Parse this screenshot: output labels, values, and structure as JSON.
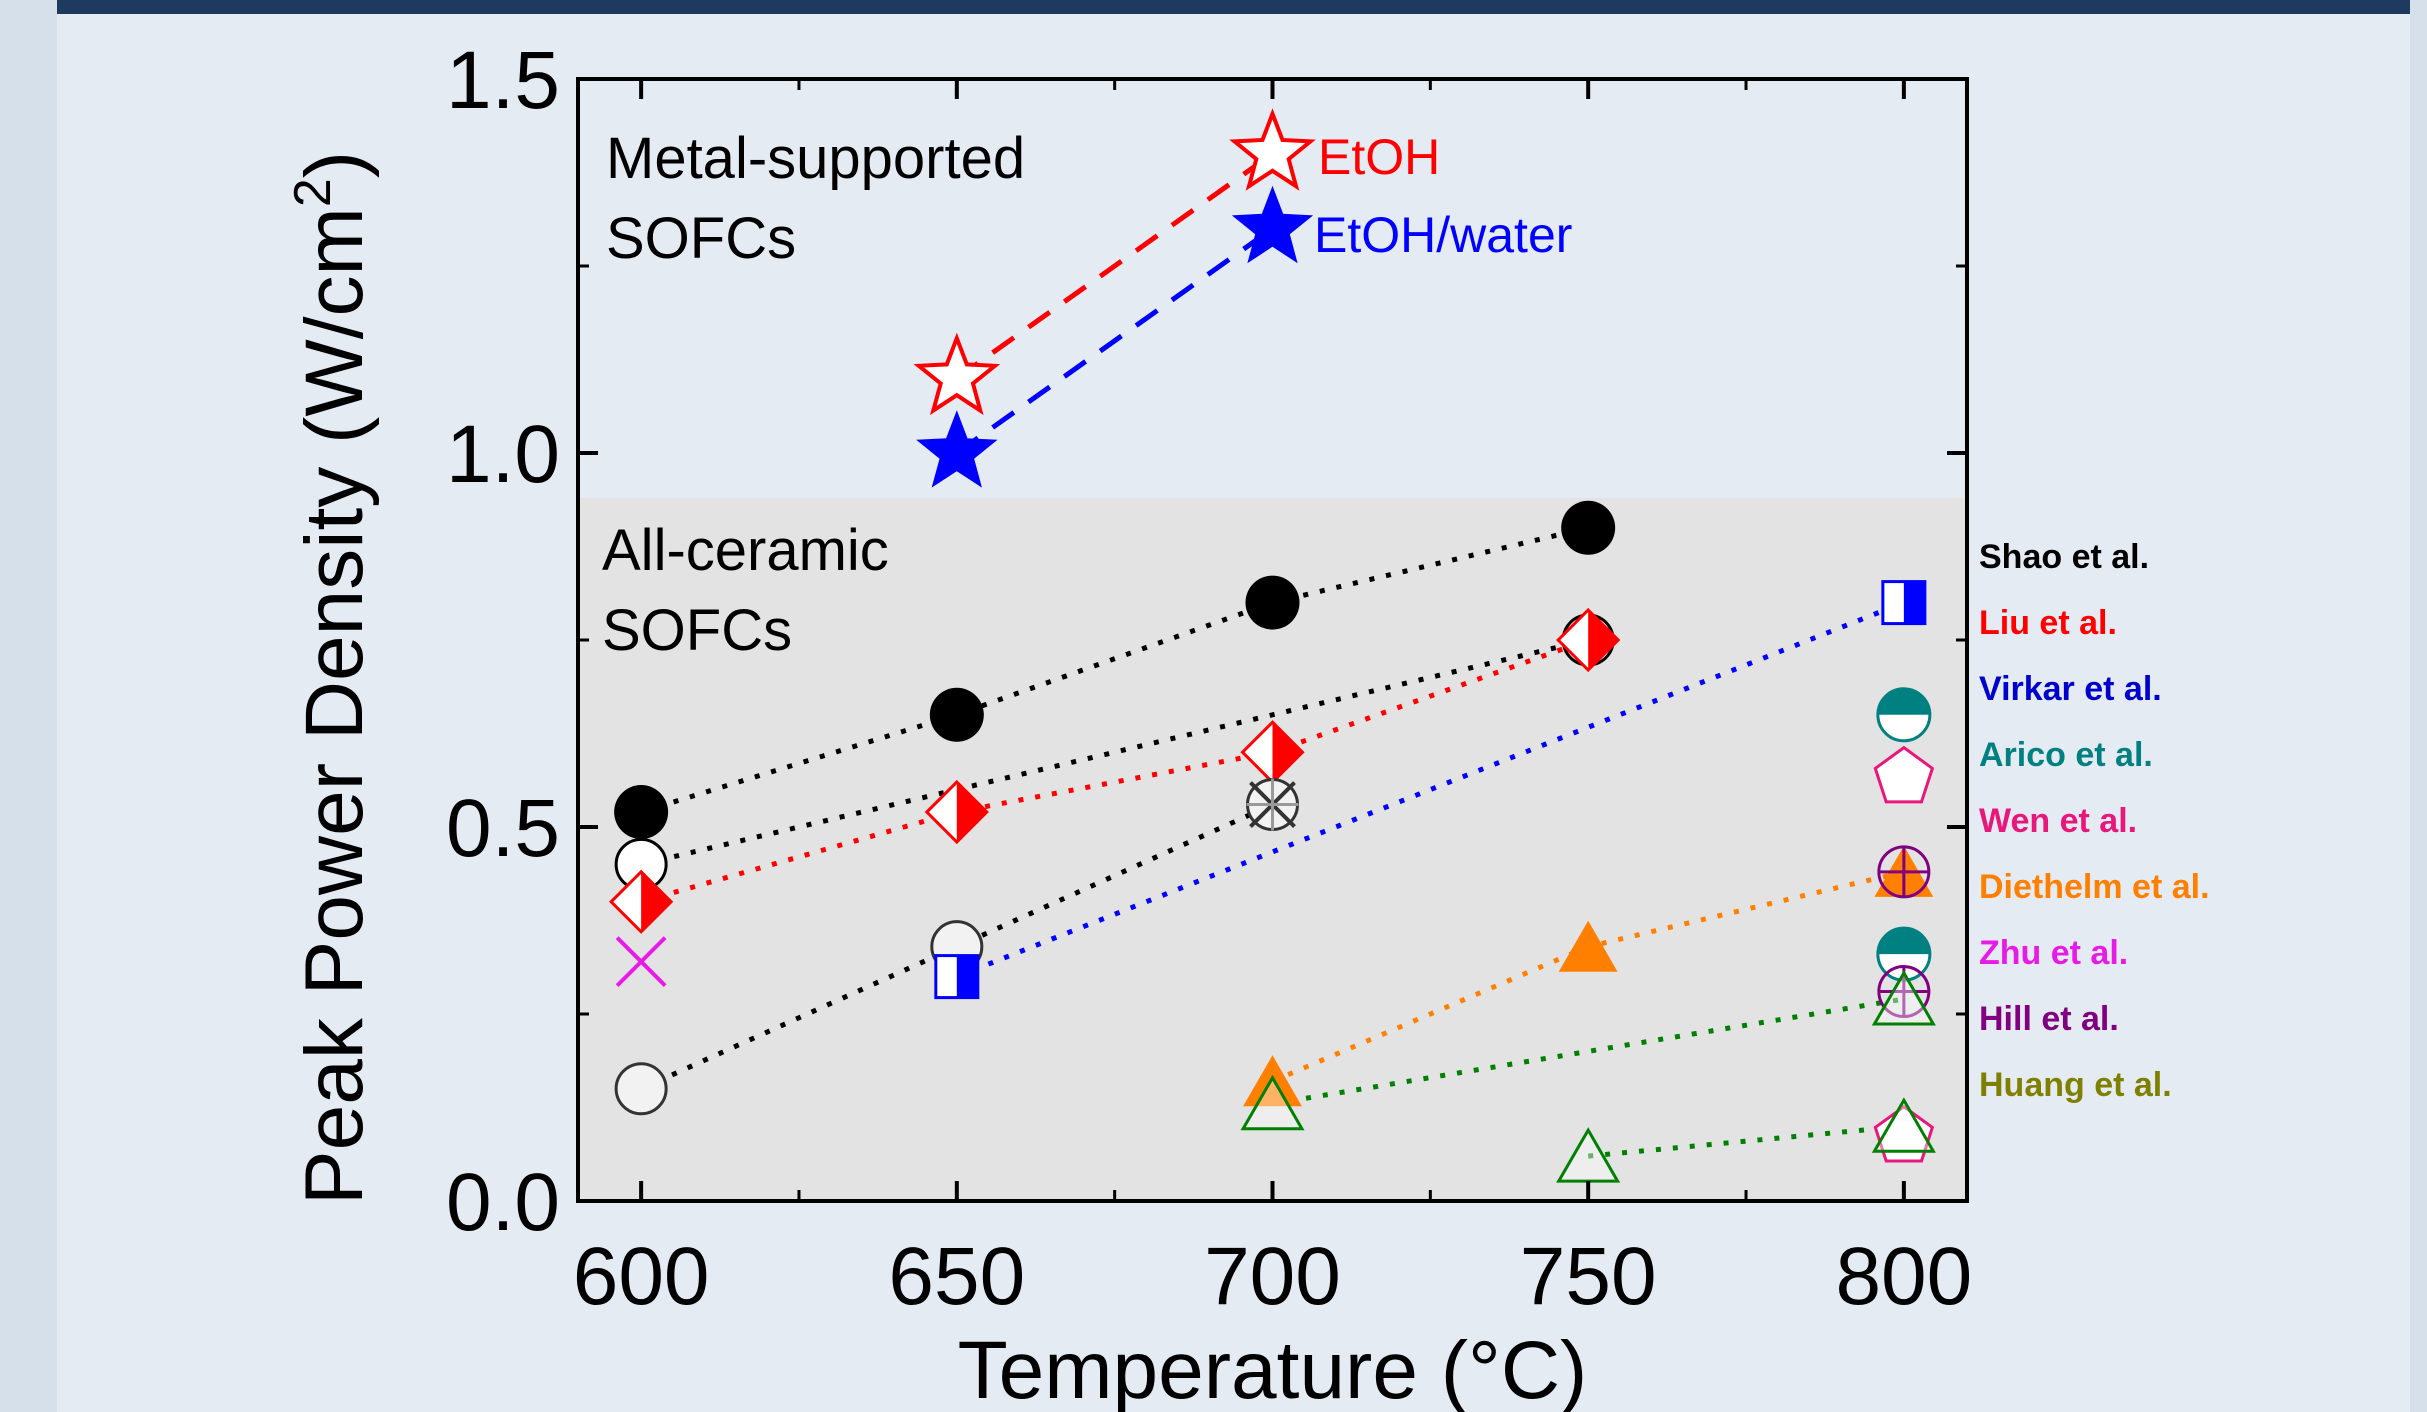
{
  "chart_data": {
    "type": "scatter",
    "title": "",
    "xlabel": "Temperature (°C)",
    "ylabel_parts": [
      "Peak Power Density (W/cm",
      "2",
      ")"
    ],
    "xlim": [
      590,
      810
    ],
    "ylim": [
      0.0,
      1.5
    ],
    "x_ticks": [
      600,
      650,
      700,
      750,
      800
    ],
    "x_tick_labels": [
      "600",
      "650",
      "700",
      "750",
      "800"
    ],
    "y_ticks": [
      0.0,
      0.5,
      1.0,
      1.5
    ],
    "y_tick_labels": [
      "0.0",
      "0.5",
      "1.0",
      "1.5"
    ],
    "grid": false,
    "annotations": {
      "metal_supported": [
        "Metal-supported",
        "SOFCs"
      ],
      "all_ceramic": [
        "All-ceramic",
        "SOFCs"
      ],
      "etoh": "EtOH",
      "etoh_water": "EtOH/water"
    },
    "ceramic_region_max": 0.94,
    "legend_position": "right",
    "legend": [
      {
        "name": "Shao et al.",
        "color": "#000000"
      },
      {
        "name": "Liu et al.",
        "color": "#ff0000"
      },
      {
        "name": "Virkar et al.",
        "color": "#0000cc"
      },
      {
        "name": "Arico et al.",
        "color": "#008080"
      },
      {
        "name": "Wen et al.",
        "color": "#e8177b"
      },
      {
        "name": "Diethelm et al.",
        "color": "#ff7f00"
      },
      {
        "name": "Zhu et al.",
        "color": "#e61ce6"
      },
      {
        "name": "Hill et al.",
        "color": "#800080"
      },
      {
        "name": "Huang et al.",
        "color": "#808000"
      }
    ],
    "series": [
      {
        "name": "EtOH",
        "marker": "star-open",
        "color": "#ff0000",
        "line": "dashed",
        "x": [
          650,
          700
        ],
        "y": [
          1.1,
          1.4
        ]
      },
      {
        "name": "EtOH/water",
        "marker": "star-filled",
        "color": "#0000ff",
        "line": "dashed",
        "x": [
          650,
          700
        ],
        "y": [
          1.0,
          1.3
        ]
      },
      {
        "marker": "circle-filled",
        "color": "#000000",
        "line": "dotted",
        "x": [
          600,
          650,
          700,
          750
        ],
        "y": [
          0.52,
          0.65,
          0.8,
          0.9
        ]
      },
      {
        "marker": "circle-open",
        "color": "#000000",
        "line": "dotted",
        "x": [
          600,
          750
        ],
        "y": [
          0.45,
          0.75
        ]
      },
      {
        "marker": "diamond-half",
        "color": "#ff0000",
        "line": "dotted",
        "x": [
          600,
          650,
          700,
          750
        ],
        "y": [
          0.4,
          0.52,
          0.6,
          0.75
        ]
      },
      {
        "marker": "circle-grey",
        "color": "#000000",
        "line": "dotted",
        "x": [
          600,
          650,
          700
        ],
        "y": [
          0.15,
          0.34,
          0.53
        ]
      },
      {
        "marker": "cross",
        "color": "#000000",
        "line": "none",
        "x": [
          700
        ],
        "y": [
          0.53
        ]
      },
      {
        "marker": "x",
        "color": "#e61ce6",
        "line": "none",
        "x": [
          600
        ],
        "y": [
          0.32
        ]
      },
      {
        "marker": "square-half",
        "color": "#0000ff",
        "line": "dotted",
        "x": [
          650,
          800
        ],
        "y": [
          0.3,
          0.8
        ]
      },
      {
        "marker": "circle-half-top",
        "color": "#008080",
        "line": "none",
        "x": [
          800,
          800
        ],
        "y": [
          0.65,
          0.33
        ]
      },
      {
        "marker": "pentagon-open",
        "color": "#e8177b",
        "line": "none",
        "x": [
          800,
          800
        ],
        "y": [
          0.57,
          0.09
        ]
      },
      {
        "marker": "triangle-filled",
        "color": "#ff7f00",
        "line": "dotted",
        "x": [
          700,
          750,
          800
        ],
        "y": [
          0.16,
          0.34,
          0.44
        ]
      },
      {
        "marker": "circle-cross",
        "color": "#800080",
        "line": "none",
        "x": [
          800,
          800
        ],
        "y": [
          0.44,
          0.28
        ]
      },
      {
        "marker": "triangle-open",
        "color": "#008000",
        "line": "dotted",
        "x": [
          700,
          800
        ],
        "y": [
          0.13,
          0.27
        ]
      },
      {
        "marker": "triangle-open",
        "color": "#008000",
        "line": "dotted",
        "x": [
          750,
          800
        ],
        "y": [
          0.06,
          0.1
        ]
      }
    ]
  }
}
